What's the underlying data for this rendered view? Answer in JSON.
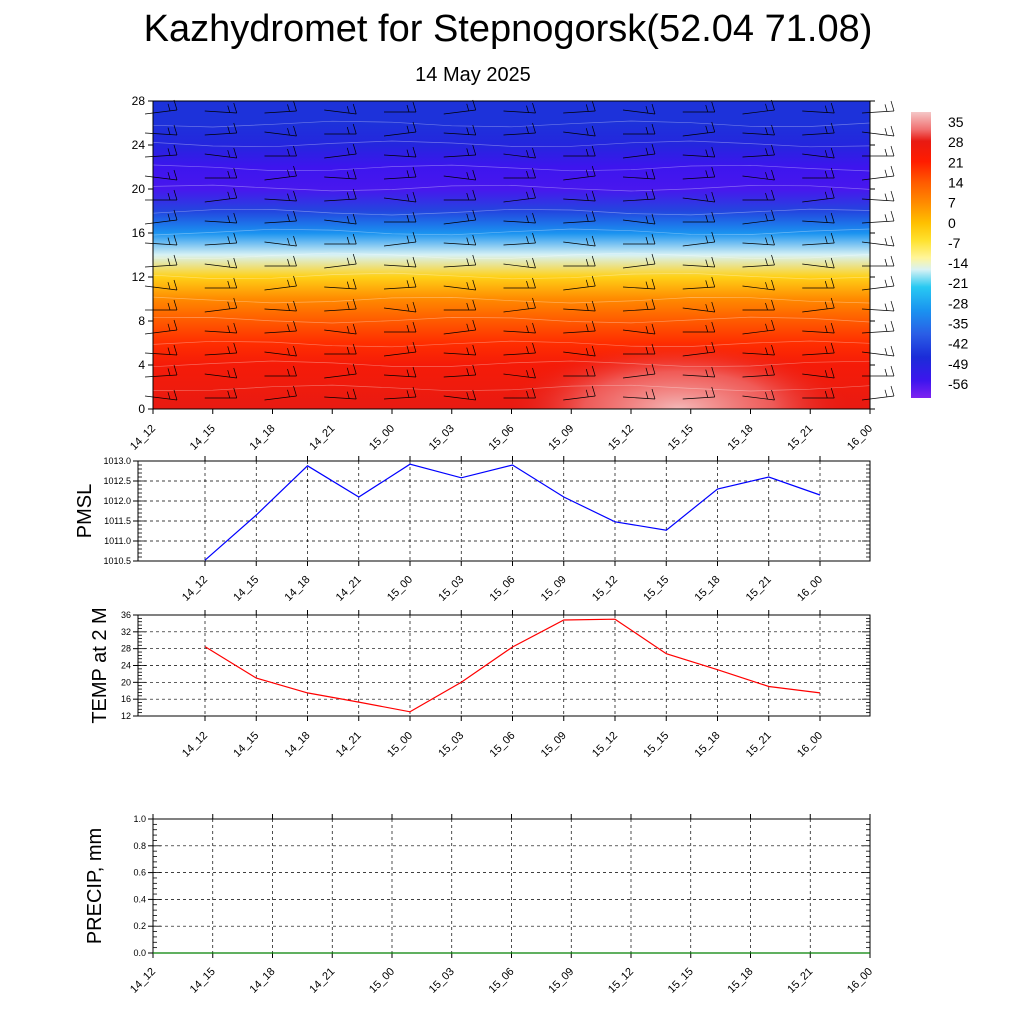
{
  "title": "Kazhydromet for Stepnogorsk(52.04 71.08)",
  "subtitle": "14 May 2025",
  "time_labels": [
    "14_12",
    "14_15",
    "14_18",
    "14_21",
    "15_00",
    "15_03",
    "15_06",
    "15_09",
    "15_12",
    "15_15",
    "15_18",
    "15_21",
    "16_00"
  ],
  "chart_data": [
    {
      "type": "heatmap",
      "ylim": [
        0,
        28
      ],
      "yticks": [
        0,
        4,
        8,
        12,
        16,
        20,
        24,
        28
      ],
      "x": [
        "14_12",
        "14_15",
        "14_18",
        "14_21",
        "15_00",
        "15_03",
        "15_06",
        "15_09",
        "15_12",
        "15_15",
        "15_18",
        "15_21",
        "16_00"
      ],
      "colorbar_ticks": [
        35,
        28,
        21,
        14,
        7,
        0,
        -7,
        -14,
        -21,
        -28,
        -35,
        -42,
        -49,
        -56
      ],
      "colorbar_range": [
        -60,
        38
      ],
      "y_levels": [
        0,
        2,
        4,
        6,
        8,
        10,
        12,
        14,
        16,
        18,
        20,
        22,
        24,
        26,
        28
      ],
      "profile": [
        28,
        26,
        24,
        19,
        14,
        7,
        -3,
        -16,
        -30,
        -42,
        -55,
        -54,
        -48,
        -45,
        -45
      ],
      "hot_spot": {
        "x_index": 8.8,
        "level": 0,
        "peak": 37
      },
      "overlay": "wind barbs"
    },
    {
      "type": "line",
      "ylabel": "PMSL",
      "ylim": [
        1010.5,
        1013.0
      ],
      "yticks": [
        "1010.5",
        "1011.0",
        "1011.5",
        "1012.0",
        "1012.5",
        "1013.0"
      ],
      "x": [
        "14_12",
        "14_15",
        "14_18",
        "14_21",
        "15_00",
        "15_03",
        "15_06",
        "15_09",
        "15_12",
        "15_15",
        "15_18",
        "15_21",
        "16_00"
      ],
      "series": [
        {
          "color": "#0000ff",
          "values": [
            1010.52,
            1011.65,
            1012.88,
            1012.1,
            1012.92,
            1012.58,
            1012.9,
            1012.1,
            1011.48,
            1011.27,
            1012.3,
            1012.6,
            1012.15
          ]
        }
      ],
      "grid": true
    },
    {
      "type": "line",
      "ylabel": "TEMP at 2 M",
      "ylim": [
        12,
        36
      ],
      "yticks": [
        "12",
        "16",
        "20",
        "24",
        "28",
        "32",
        "36"
      ],
      "x": [
        "14_12",
        "14_15",
        "14_18",
        "14_21",
        "15_00",
        "15_03",
        "15_06",
        "15_09",
        "15_12",
        "15_15",
        "15_18",
        "15_21",
        "16_00"
      ],
      "series": [
        {
          "color": "#ff0000",
          "values": [
            28.5,
            21.0,
            17.5,
            15.3,
            13.0,
            20.0,
            28.4,
            34.8,
            35.0,
            26.8,
            23.0,
            19.0,
            17.5
          ]
        }
      ],
      "grid": true
    },
    {
      "type": "line",
      "ylabel": "PRECIP, mm",
      "ylim": [
        0,
        1
      ],
      "yticks": [
        "0.0",
        "0.2",
        "0.4",
        "0.6",
        "0.8",
        "1.0"
      ],
      "x": [
        "14_12",
        "14_15",
        "14_18",
        "14_21",
        "15_00",
        "15_03",
        "15_06",
        "15_09",
        "15_12",
        "15_15",
        "15_18",
        "15_21",
        "16_00"
      ],
      "series": [
        {
          "color": "#008000",
          "values": [
            0,
            0,
            0,
            0,
            0,
            0,
            0,
            0,
            0,
            0,
            0,
            0,
            0
          ]
        }
      ],
      "grid": true
    }
  ]
}
